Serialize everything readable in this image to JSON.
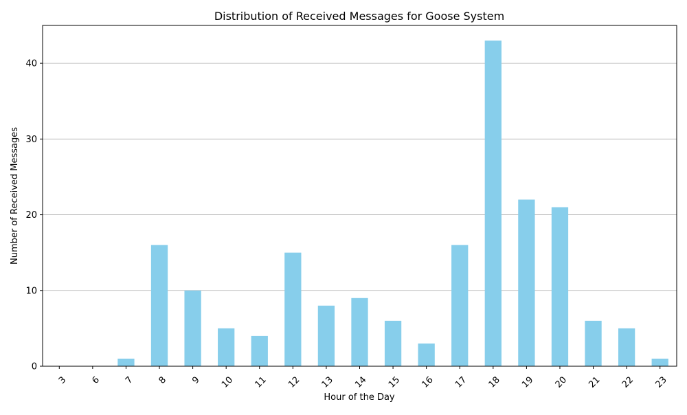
{
  "chart_data": {
    "type": "bar",
    "title": "Distribution of Received Messages for Goose System",
    "xlabel": "Hour of the Day",
    "ylabel": "Number of Received Messages",
    "categories": [
      "3",
      "6",
      "7",
      "8",
      "9",
      "10",
      "11",
      "12",
      "13",
      "14",
      "15",
      "16",
      "17",
      "18",
      "19",
      "20",
      "21",
      "22",
      "23"
    ],
    "values": [
      0,
      0,
      1,
      16,
      10,
      5,
      4,
      15,
      8,
      9,
      6,
      3,
      16,
      43,
      22,
      21,
      6,
      5,
      1
    ],
    "ylim": [
      0,
      45
    ],
    "yticks": [
      0,
      10,
      20,
      30,
      40
    ],
    "grid": "y",
    "bar_color": "#87CEEB",
    "xtick_rotation": 45
  }
}
